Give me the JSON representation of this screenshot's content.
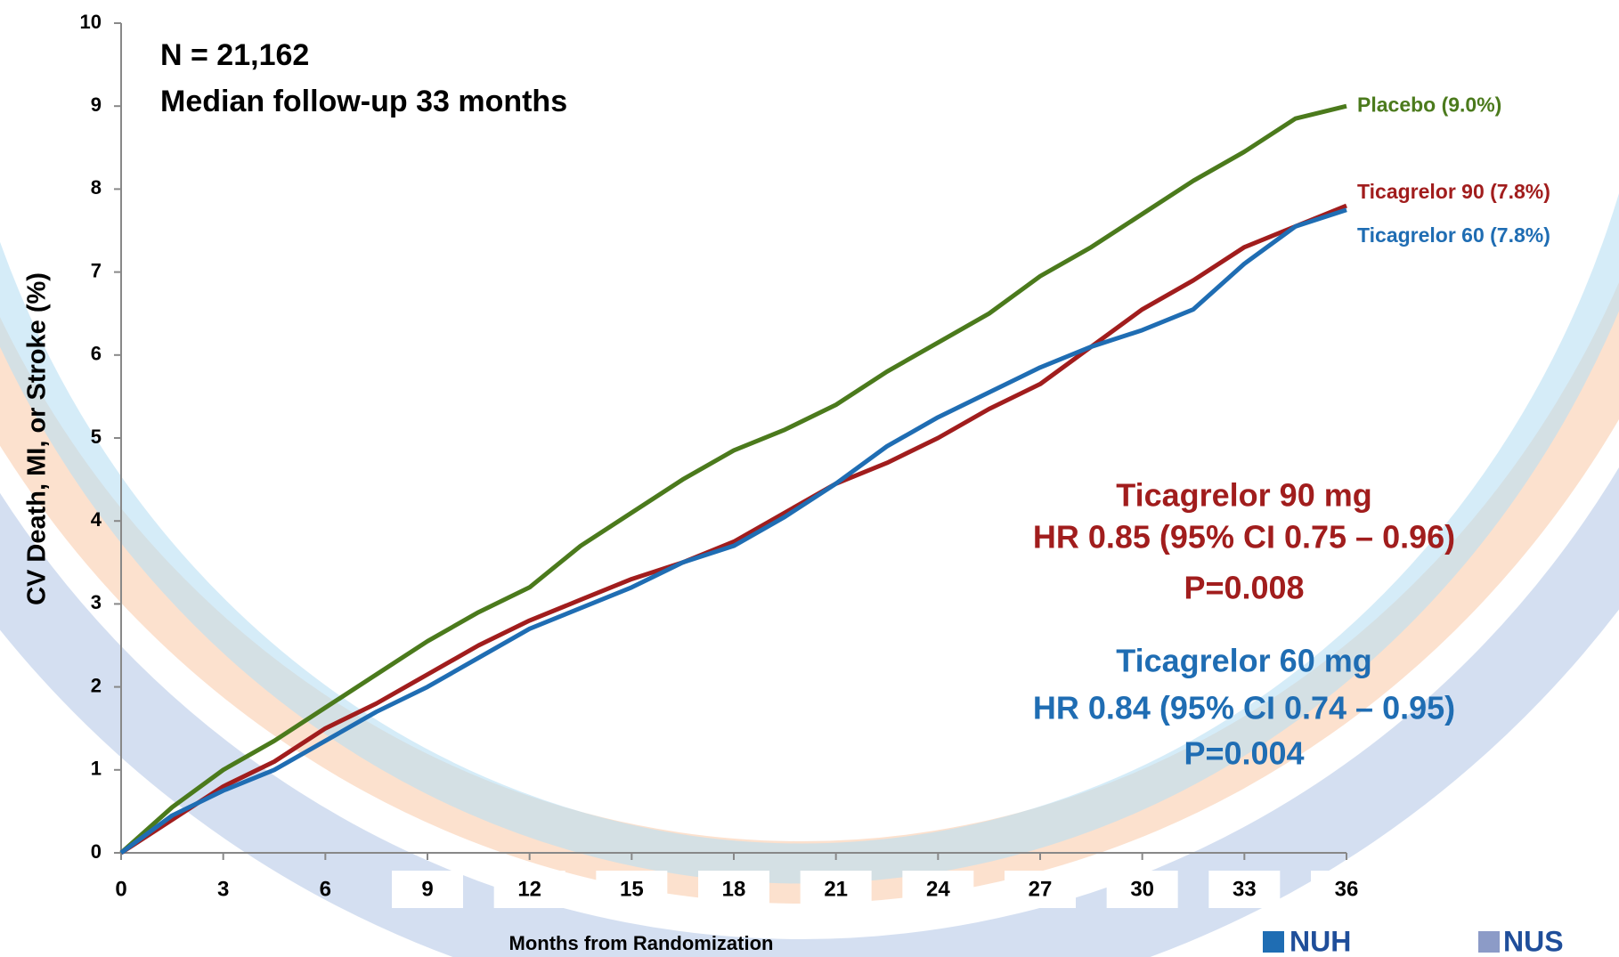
{
  "chart_data": {
    "type": "line",
    "ylabel": "CV Death, MI, or Stroke (%)",
    "xlabel": "Months from Randomization",
    "x": [
      0,
      1.5,
      3,
      4.5,
      6,
      7.5,
      9,
      10.5,
      12,
      13.5,
      15,
      16.5,
      18,
      19.5,
      21,
      22.5,
      24,
      25.5,
      27,
      28.5,
      30,
      31.5,
      33,
      34.5,
      36
    ],
    "xlim": [
      0,
      36
    ],
    "xticks": [
      0,
      3,
      6,
      9,
      12,
      15,
      18,
      21,
      24,
      27,
      30,
      33,
      36
    ],
    "ylim": [
      0,
      10
    ],
    "yticks": [
      0,
      1,
      2,
      3,
      4,
      5,
      6,
      7,
      8,
      9,
      10
    ],
    "series": [
      {
        "name": "Placebo (9.0%)",
        "color": "#4b7a1c",
        "values": [
          0,
          0.55,
          1.0,
          1.35,
          1.75,
          2.15,
          2.55,
          2.9,
          3.2,
          3.7,
          4.1,
          4.5,
          4.85,
          5.1,
          5.4,
          5.8,
          6.15,
          6.5,
          6.95,
          7.3,
          7.7,
          8.1,
          8.45,
          8.85,
          9.0
        ]
      },
      {
        "name": "Ticagrelor 90 (7.8%)",
        "color": "#a11d1d",
        "values": [
          0,
          0.4,
          0.8,
          1.1,
          1.5,
          1.8,
          2.15,
          2.5,
          2.8,
          3.05,
          3.3,
          3.5,
          3.75,
          4.1,
          4.45,
          4.7,
          5.0,
          5.35,
          5.65,
          6.1,
          6.55,
          6.9,
          7.3,
          7.55,
          7.8
        ]
      },
      {
        "name": "Ticagrelor 60 (7.8%)",
        "color": "#1f6db3",
        "values": [
          0,
          0.45,
          0.75,
          1.0,
          1.35,
          1.7,
          2.0,
          2.35,
          2.7,
          2.95,
          3.2,
          3.5,
          3.7,
          4.05,
          4.45,
          4.9,
          5.25,
          5.55,
          5.85,
          6.1,
          6.3,
          6.55,
          7.1,
          7.55,
          7.75
        ]
      }
    ],
    "annotations": [
      {
        "text": "N = 21,162",
        "color": "#000000"
      },
      {
        "text": "Median follow-up 33 months",
        "color": "#000000"
      },
      {
        "text": "Ticagrelor 90 mg",
        "color": "#a11d1d"
      },
      {
        "text": "HR 0.85 (95% CI 0.75 – 0.96)",
        "color": "#a11d1d"
      },
      {
        "text": "P=0.008",
        "color": "#a11d1d"
      },
      {
        "text": "Ticagrelor 60 mg",
        "color": "#1f6db3"
      },
      {
        "text": "HR 0.84 (95% CI 0.74 – 0.95)",
        "color": "#1f6db3"
      },
      {
        "text": "P=0.004",
        "color": "#1f6db3"
      }
    ]
  },
  "logos": [
    "NUH",
    "NUS"
  ]
}
